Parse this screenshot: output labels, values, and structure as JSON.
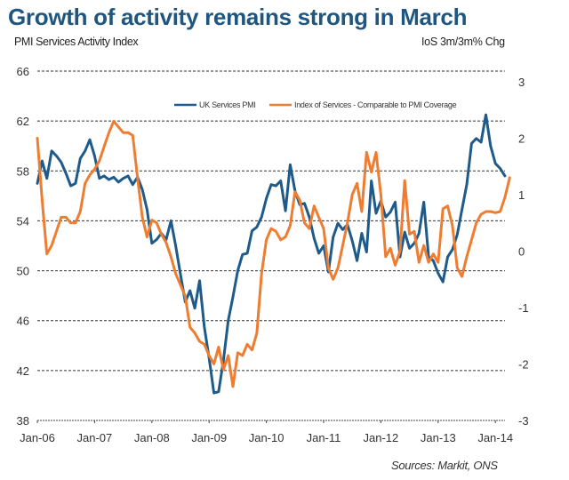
{
  "title": "Growth of activity remains strong in March",
  "source": "Sources: Markit, ONS",
  "chart_data": {
    "type": "line",
    "title": "Growth of activity remains strong in March",
    "xlabel": "",
    "ylabel": "PMI Services Activity Index",
    "ylabel_right": "IoS 3m/3m% Chg",
    "x_tick_labels": [
      "Jan-06",
      "Jan-07",
      "Jan-08",
      "Jan-09",
      "Jan-10",
      "Jan-11",
      "Jan-12",
      "Jan-13",
      "Jan-14"
    ],
    "y_ticks_left": [
      38,
      42,
      46,
      50,
      54,
      58,
      62,
      66
    ],
    "y_ticks_right": [
      -3,
      -2,
      -1,
      0,
      1,
      2,
      3
    ],
    "ylim": [
      38,
      66
    ],
    "ylim_right": [
      -3,
      3
    ],
    "grid": true,
    "legend_position": "top-center",
    "x_start": "Jan-06",
    "x_unit": "month",
    "series": [
      {
        "name": "UK Services PMI",
        "axis": "left",
        "color": "#1f5b8a",
        "values": [
          57.0,
          58.8,
          57.4,
          59.6,
          59.2,
          58.7,
          57.8,
          56.8,
          57.0,
          59.0,
          59.6,
          60.5,
          59.2,
          57.4,
          57.6,
          57.3,
          57.5,
          57.1,
          57.4,
          57.6,
          56.9,
          57.5,
          56.5,
          54.9,
          52.2,
          52.5,
          53.0,
          52.5,
          54.0,
          52.0,
          49.7,
          47.5,
          48.4,
          47.0,
          49.2,
          45.5,
          43.0,
          40.2,
          40.3,
          42.8,
          46.0,
          47.9,
          50.0,
          51.3,
          51.4,
          53.2,
          53.5,
          54.3,
          55.8,
          56.9,
          56.8,
          57.2,
          54.8,
          58.5,
          56.4,
          55.3,
          55.4,
          54.3,
          52.6,
          51.4,
          52.0,
          49.9,
          52.7,
          53.8,
          53.3,
          53.7,
          52.4,
          50.8,
          53.0,
          51.5,
          57.2,
          54.6,
          55.6,
          54.3,
          54.7,
          55.5,
          51.1,
          53.1,
          51.8,
          52.2,
          53.0,
          55.5,
          51.1,
          50.8,
          49.8,
          49.1,
          51.1,
          51.7,
          52.9,
          54.9,
          56.9,
          60.2,
          60.6,
          60.3,
          62.5,
          60.0,
          58.6,
          58.2,
          57.6
        ]
      },
      {
        "name": "Index of Services - Comparable to PMI Coverage",
        "axis": "right",
        "color": "#ee7d31",
        "values": [
          2.0,
          0.9,
          -0.05,
          0.1,
          0.35,
          0.6,
          0.6,
          0.5,
          0.5,
          0.7,
          1.2,
          1.35,
          1.45,
          1.6,
          1.85,
          2.1,
          2.3,
          2.2,
          2.1,
          2.1,
          2.05,
          1.3,
          0.6,
          0.25,
          0.55,
          0.5,
          0.3,
          0.15,
          -0.1,
          -0.4,
          -0.6,
          -0.8,
          -1.35,
          -1.45,
          -1.6,
          -1.65,
          -1.85,
          -2.0,
          -1.7,
          -2.1,
          -1.85,
          -2.4,
          -1.8,
          -1.85,
          -1.65,
          -1.75,
          -1.45,
          -0.4,
          0.2,
          0.4,
          0.35,
          0.2,
          0.25,
          0.45,
          1.05,
          0.9,
          0.5,
          0.4,
          0.8,
          0.6,
          0.4,
          -0.3,
          -0.5,
          -0.3,
          0.1,
          0.5,
          1.0,
          1.2,
          0.7,
          1.75,
          1.4,
          1.75,
          1.0,
          -0.1,
          0.05,
          -0.25,
          0.0,
          1.25,
          0.3,
          0.35,
          -0.2,
          0.1,
          -0.2,
          -0.05,
          -0.2,
          0.75,
          0.8,
          0.45,
          -0.3,
          -0.45,
          -0.1,
          0.2,
          0.5,
          0.65,
          0.7,
          0.7,
          0.68,
          0.7,
          0.95,
          1.3
        ]
      }
    ]
  }
}
